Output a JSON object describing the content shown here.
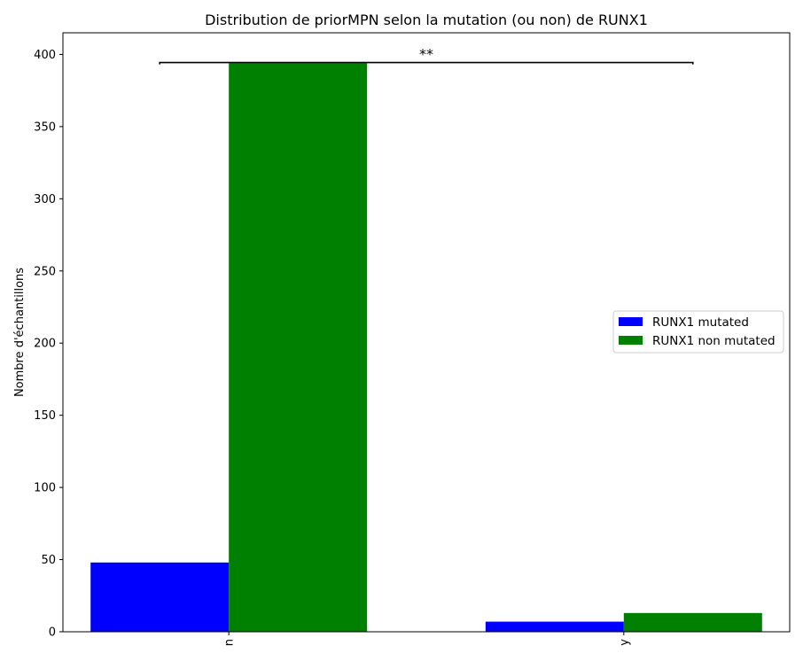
{
  "chart_data": {
    "type": "bar",
    "title": "Distribution de priorMPN selon la mutation (ou non) de RUNX1",
    "xlabel": "",
    "ylabel": "Nombre d'échantillons",
    "categories": [
      "n",
      "y"
    ],
    "series": [
      {
        "name": "RUNX1 mutated",
        "color": "#0000ff",
        "values": [
          48,
          7
        ]
      },
      {
        "name": "RUNX1 non mutated",
        "color": "#008000",
        "values": [
          394,
          13
        ]
      }
    ],
    "ylim": [
      0,
      415
    ],
    "yticks": [
      0,
      50,
      100,
      150,
      200,
      250,
      300,
      350,
      400
    ],
    "grid": false,
    "legend_position": "center-right",
    "significance": {
      "label": "**",
      "value": 395
    }
  }
}
